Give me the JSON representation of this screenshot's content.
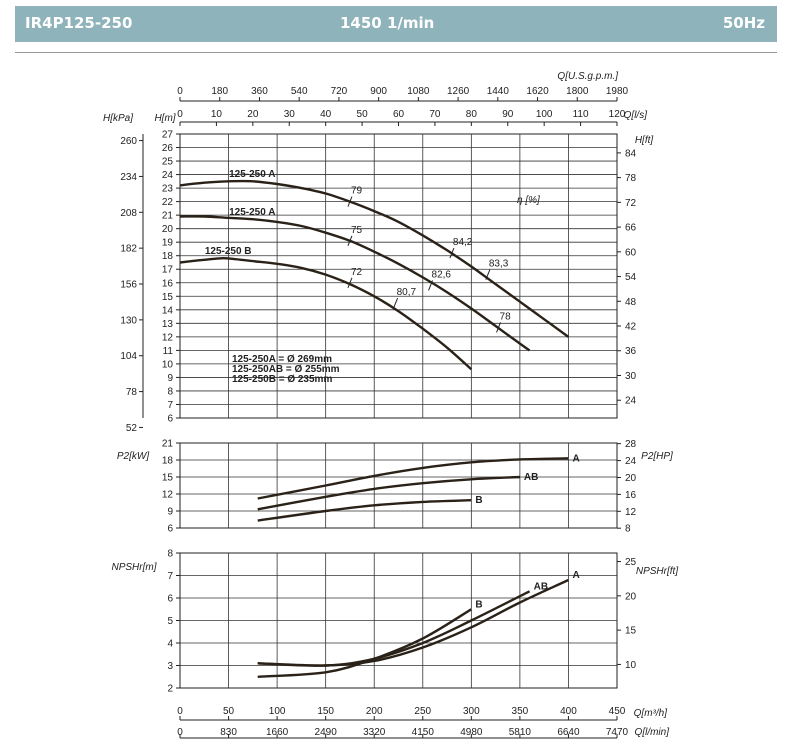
{
  "header": {
    "model": "IR4P125-250",
    "speed": "1450 1/min",
    "frequency": "50Hz"
  },
  "chart_data": {
    "type": "line",
    "title": "IR4P125-250 1450 1/min 50Hz",
    "q_axes": {
      "q_m3h": {
        "label": "Q[m³/h]",
        "range": [
          0,
          450
        ],
        "ticks": [
          0,
          50,
          100,
          150,
          200,
          250,
          300,
          350,
          400,
          450
        ]
      },
      "q_usgpm": {
        "label": "Q[U.S.g.p.m.]",
        "range": [
          0,
          1980
        ],
        "ticks": [
          0,
          180,
          360,
          540,
          720,
          900,
          1080,
          1260,
          1440,
          1620,
          1800,
          1980
        ]
      },
      "q_ls": {
        "label": "Q[l/s]",
        "range": [
          0,
          120
        ],
        "ticks": [
          0,
          10,
          20,
          30,
          40,
          50,
          60,
          70,
          80,
          90,
          100,
          110,
          120
        ]
      },
      "q_lmin": {
        "label": "Q[l/min]",
        "range": [
          0,
          7470
        ],
        "ticks": [
          0,
          830,
          1660,
          2490,
          3320,
          4150,
          4980,
          5810,
          6640,
          7470
        ]
      }
    },
    "head": {
      "ylabel_m": "H[m]",
      "ylabel_kpa": "H[kPa]",
      "ylabel_ft": "H[ft]",
      "eff_label": "η [%]",
      "ylim": [
        6,
        27
      ],
      "yticks": [
        6,
        7,
        8,
        9,
        10,
        11,
        12,
        13,
        14,
        15,
        16,
        17,
        18,
        19,
        20,
        21,
        22,
        23,
        24,
        25,
        26,
        27
      ],
      "kpa_ticks": [
        52,
        78,
        104,
        130,
        156,
        182,
        208,
        234,
        260
      ],
      "ft_ticks": [
        24,
        30,
        36,
        42,
        48,
        54,
        60,
        66,
        72,
        78,
        84
      ],
      "series": [
        {
          "name": "125-250 A",
          "x": [
            0,
            25,
            50,
            75,
            100,
            125,
            150,
            175,
            200,
            225,
            250,
            275,
            300,
            325,
            350,
            375,
            400
          ],
          "y": [
            23.2,
            23.4,
            23.5,
            23.5,
            23.3,
            23.0,
            22.6,
            22.0,
            21.3,
            20.5,
            19.5,
            18.4,
            17.2,
            15.9,
            14.6,
            13.3,
            12.0
          ]
        },
        {
          "name": "125-250 A",
          "x": [
            0,
            25,
            50,
            75,
            100,
            125,
            150,
            175,
            200,
            225,
            250,
            275,
            300,
            325,
            350,
            360
          ],
          "y": [
            20.9,
            20.9,
            20.8,
            20.7,
            20.5,
            20.2,
            19.7,
            19.1,
            18.3,
            17.4,
            16.4,
            15.3,
            14.1,
            12.8,
            11.5,
            11.0
          ]
        },
        {
          "name": "125-250 B",
          "x": [
            0,
            25,
            40,
            50,
            75,
            100,
            125,
            150,
            175,
            200,
            225,
            250,
            275,
            300
          ],
          "y": [
            17.5,
            17.7,
            17.8,
            17.8,
            17.6,
            17.4,
            17.1,
            16.6,
            15.9,
            15.0,
            13.9,
            12.6,
            11.2,
            9.6
          ]
        }
      ],
      "efficiency_marks": [
        {
          "label": "79",
          "q": 175,
          "h": 22.0
        },
        {
          "label": "75",
          "q": 175,
          "h": 19.1
        },
        {
          "label": "72",
          "q": 175,
          "h": 16.0
        },
        {
          "label": "80,7",
          "q": 222,
          "h": 14.5
        },
        {
          "label": "84,2",
          "q": 280,
          "h": 18.2
        },
        {
          "label": "82,6",
          "q": 258,
          "h": 15.8
        },
        {
          "label": "83,3",
          "q": 317,
          "h": 16.6
        },
        {
          "label": "78",
          "q": 328,
          "h": 12.7
        }
      ],
      "diameters": [
        "125-250A = Ø 269mm",
        "125-250AB = Ø 255mm",
        "125-250B = Ø 235mm"
      ]
    },
    "power": {
      "ylabel_kw": "P2[kW]",
      "ylabel_hp": "P2[HP]",
      "ylim": [
        6,
        21
      ],
      "yticks": [
        6,
        9,
        12,
        15,
        18,
        21
      ],
      "hp_ticks": [
        8,
        12,
        16,
        20,
        24,
        28
      ],
      "series": [
        {
          "name": "A",
          "x": [
            80,
            150,
            200,
            250,
            300,
            350,
            400
          ],
          "y": [
            11.2,
            13.5,
            15.2,
            16.6,
            17.6,
            18.1,
            18.3
          ]
        },
        {
          "name": "AB",
          "x": [
            80,
            150,
            200,
            250,
            300,
            350
          ],
          "y": [
            9.3,
            11.5,
            12.9,
            13.9,
            14.6,
            15.0
          ]
        },
        {
          "name": "B",
          "x": [
            80,
            150,
            200,
            250,
            300
          ],
          "y": [
            7.3,
            9.0,
            10.0,
            10.6,
            10.9
          ]
        }
      ]
    },
    "npsh": {
      "ylabel_m": "NPSHr[m]",
      "ylabel_ft": "NPSHr[ft]",
      "ylim": [
        2,
        8
      ],
      "yticks": [
        2,
        3,
        4,
        5,
        6,
        7,
        8
      ],
      "ft_ticks": [
        10,
        15,
        20,
        25
      ],
      "series": [
        {
          "name": "A",
          "x": [
            80,
            150,
            200,
            250,
            300,
            350,
            400
          ],
          "y": [
            3.1,
            3.0,
            3.2,
            3.8,
            4.7,
            5.8,
            6.8
          ]
        },
        {
          "name": "AB",
          "x": [
            80,
            150,
            200,
            250,
            300,
            360
          ],
          "y": [
            3.1,
            3.0,
            3.3,
            4.0,
            5.0,
            6.3
          ]
        },
        {
          "name": "B",
          "x": [
            80,
            150,
            200,
            250,
            300
          ],
          "y": [
            2.5,
            2.7,
            3.3,
            4.2,
            5.5
          ]
        }
      ]
    }
  }
}
